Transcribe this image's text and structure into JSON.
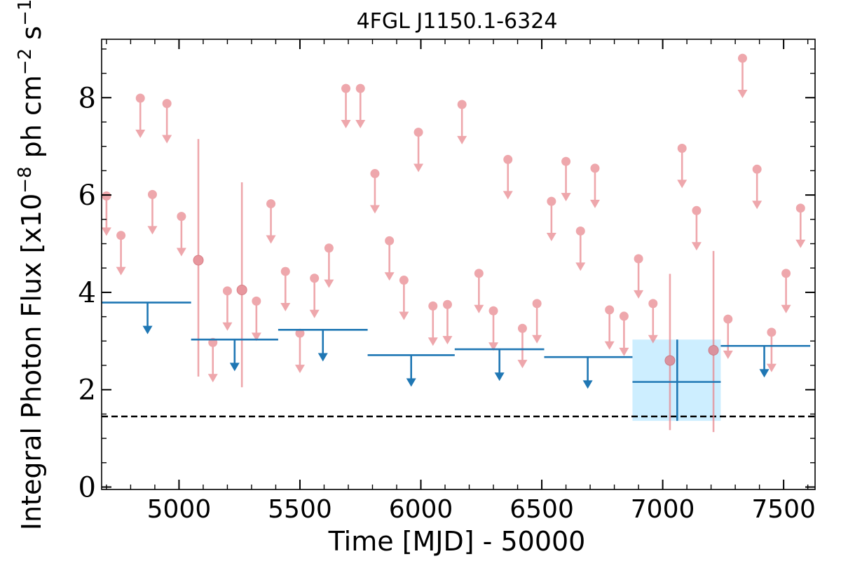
{
  "chart_data": {
    "type": "scatter",
    "title": "4FGL J1150.1-6324",
    "xlabel": "Time [MJD] - 50000",
    "ylabel": "Integral Photon Flux [x10",
    "ylabel_exp1": "−8",
    "ylabel_mid": " ph cm",
    "ylabel_exp2": "−2",
    "ylabel_mid2": " s",
    "ylabel_exp3": "−1",
    "ylabel_end": "]",
    "xlim": [
      4680,
      7630
    ],
    "ylim": [
      -0.05,
      9.2
    ],
    "x_ticks": [
      {
        "value": 5000,
        "label": "5000"
      },
      {
        "value": 5500,
        "label": "5500"
      },
      {
        "value": 6000,
        "label": "6000"
      },
      {
        "value": 6500,
        "label": "6500"
      },
      {
        "value": 7000,
        "label": "7000"
      },
      {
        "value": 7500,
        "label": "7500"
      }
    ],
    "y_ticks": [
      {
        "value": 0,
        "label": "0"
      },
      {
        "value": 2,
        "label": "2"
      },
      {
        "value": 4,
        "label": "4"
      },
      {
        "value": 6,
        "label": "6"
      },
      {
        "value": 8,
        "label": "8"
      }
    ],
    "x_minor_step": 100,
    "y_minor_step": 0.5,
    "reference_line": {
      "y": 1.45,
      "style": "dashed",
      "color": "#000000"
    },
    "fine_series": {
      "color": "#e8868d",
      "upper_limits": [
        {
          "x": 4700,
          "y": 5.98
        },
        {
          "x": 4760,
          "y": 5.17
        },
        {
          "x": 4840,
          "y": 7.99
        },
        {
          "x": 4890,
          "y": 6.01
        },
        {
          "x": 4950,
          "y": 7.88
        },
        {
          "x": 5010,
          "y": 5.56
        },
        {
          "x": 5140,
          "y": 2.97
        },
        {
          "x": 5200,
          "y": 4.03
        },
        {
          "x": 5320,
          "y": 3.82
        },
        {
          "x": 5380,
          "y": 5.82
        },
        {
          "x": 5440,
          "y": 4.43
        },
        {
          "x": 5500,
          "y": 3.16
        },
        {
          "x": 5560,
          "y": 4.29
        },
        {
          "x": 5620,
          "y": 4.91
        },
        {
          "x": 5690,
          "y": 8.19
        },
        {
          "x": 5750,
          "y": 8.19
        },
        {
          "x": 5810,
          "y": 6.44
        },
        {
          "x": 5870,
          "y": 5.06
        },
        {
          "x": 5930,
          "y": 4.25
        },
        {
          "x": 5990,
          "y": 7.29
        },
        {
          "x": 6050,
          "y": 3.72
        },
        {
          "x": 6110,
          "y": 3.75
        },
        {
          "x": 6170,
          "y": 7.86
        },
        {
          "x": 6240,
          "y": 4.39
        },
        {
          "x": 6300,
          "y": 3.62
        },
        {
          "x": 6360,
          "y": 6.73
        },
        {
          "x": 6420,
          "y": 3.26
        },
        {
          "x": 6480,
          "y": 3.77
        },
        {
          "x": 6540,
          "y": 5.87
        },
        {
          "x": 6600,
          "y": 6.69
        },
        {
          "x": 6660,
          "y": 5.26
        },
        {
          "x": 6720,
          "y": 6.55
        },
        {
          "x": 6780,
          "y": 3.64
        },
        {
          "x": 6840,
          "y": 3.51
        },
        {
          "x": 6900,
          "y": 4.69
        },
        {
          "x": 6960,
          "y": 3.77
        },
        {
          "x": 7080,
          "y": 6.96
        },
        {
          "x": 7140,
          "y": 5.68
        },
        {
          "x": 7270,
          "y": 3.45
        },
        {
          "x": 7330,
          "y": 8.81
        },
        {
          "x": 7390,
          "y": 6.53
        },
        {
          "x": 7450,
          "y": 3.18
        },
        {
          "x": 7510,
          "y": 4.39
        },
        {
          "x": 7570,
          "y": 5.73
        }
      ],
      "detections": [
        {
          "x": 5080,
          "y": 4.66,
          "ylow": 2.27,
          "yhigh": 7.15
        },
        {
          "x": 5260,
          "y": 4.05,
          "ylow": 2.05,
          "yhigh": 6.26
        },
        {
          "x": 7030,
          "y": 2.6,
          "ylow": 1.17,
          "yhigh": 4.38
        },
        {
          "x": 7210,
          "y": 2.81,
          "ylow": 1.13,
          "yhigh": 4.85
        }
      ]
    },
    "coarse_series": {
      "color": "#1f77b4",
      "band_color": "#cdeeff",
      "upper_limits": [
        {
          "xmin": 4680,
          "xmax": 5050,
          "y": 3.79,
          "arrow_x": 4870
        },
        {
          "xmin": 5050,
          "xmax": 5410,
          "y": 3.03,
          "arrow_x": 5230
        },
        {
          "xmin": 5410,
          "xmax": 5780,
          "y": 3.23,
          "arrow_x": 5595
        },
        {
          "xmin": 5780,
          "xmax": 6140,
          "y": 2.71,
          "arrow_x": 5960
        },
        {
          "xmin": 6140,
          "xmax": 6510,
          "y": 2.83,
          "arrow_x": 6325
        },
        {
          "xmin": 6510,
          "xmax": 6875,
          "y": 2.67,
          "arrow_x": 6690
        },
        {
          "xmin": 7240,
          "xmax": 7610,
          "y": 2.9,
          "arrow_x": 7420
        }
      ],
      "detections": [
        {
          "xmin": 6875,
          "xmax": 7240,
          "x": 7060,
          "y": 2.16,
          "ylow": 1.36,
          "yhigh": 3.03
        }
      ]
    }
  }
}
